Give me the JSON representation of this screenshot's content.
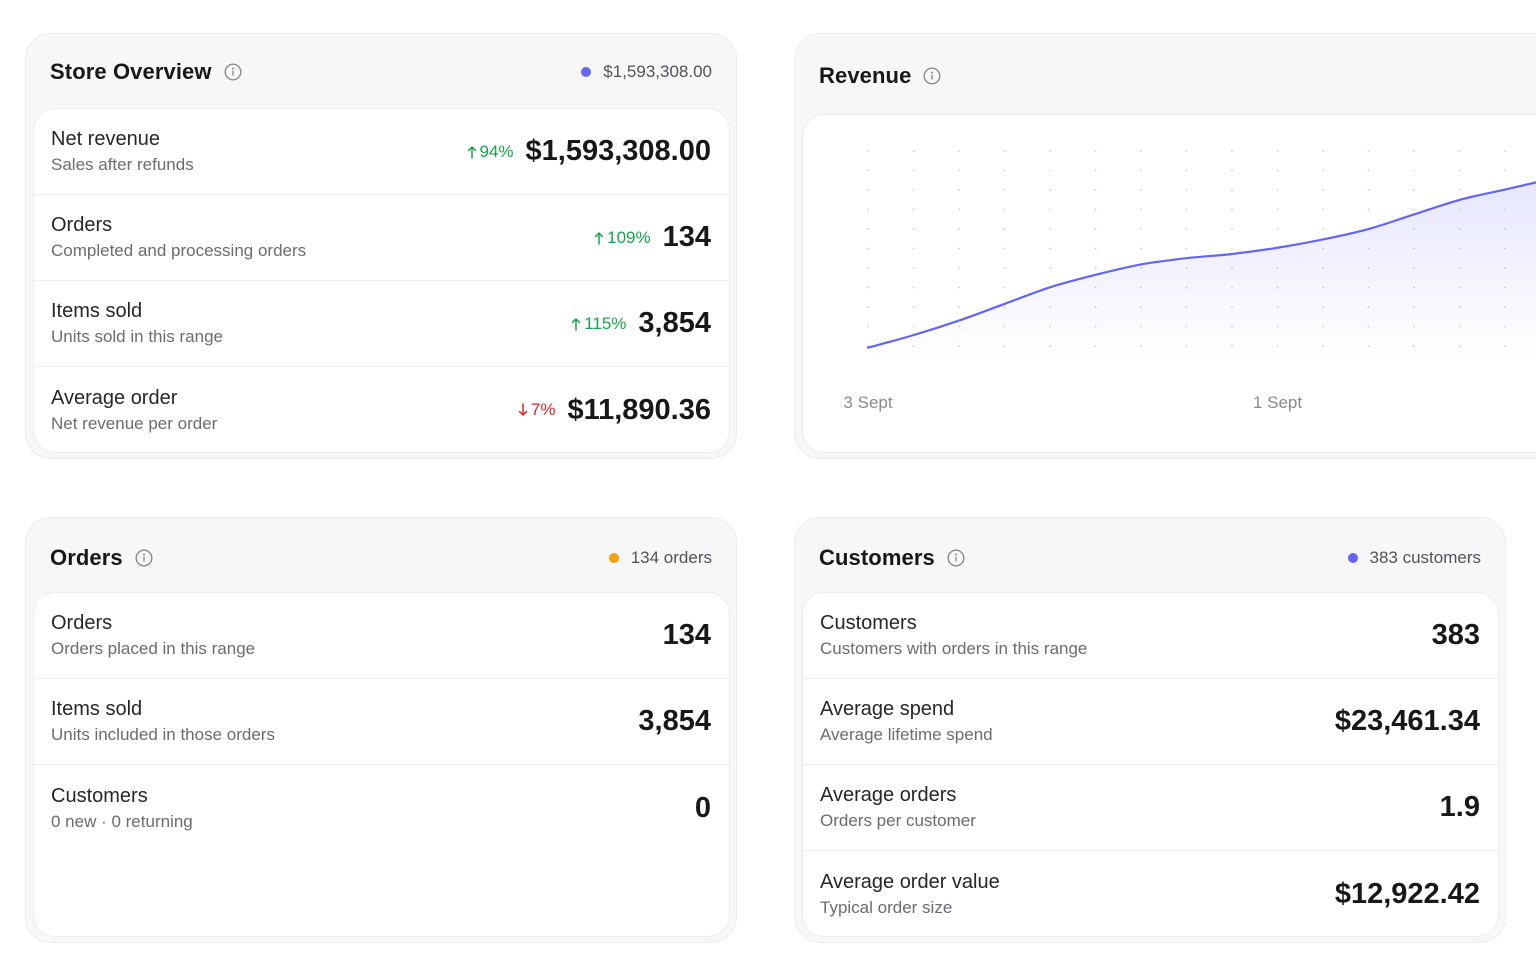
{
  "colors": {
    "accent": "#6366f1",
    "orange": "#f59e0b",
    "up": "#16a34a",
    "down": "#dc2626"
  },
  "store_overview": {
    "title": "Store Overview",
    "summary": "$1,593,308.00",
    "rows": [
      {
        "title": "Net revenue",
        "subtitle": "Sales after refunds",
        "delta": "94%",
        "delta_dir": "up",
        "value": "$1,593,308.00"
      },
      {
        "title": "Orders",
        "subtitle": "Completed and processing orders",
        "delta": "109%",
        "delta_dir": "up",
        "value": "134"
      },
      {
        "title": "Items sold",
        "subtitle": "Units sold in this range",
        "delta": "115%",
        "delta_dir": "up",
        "value": "3,854"
      },
      {
        "title": "Average order",
        "subtitle": "Net revenue per order",
        "delta": "7%",
        "delta_dir": "down",
        "value": "$11,890.36"
      }
    ]
  },
  "revenue": {
    "title": "Revenue"
  },
  "chart_data": {
    "type": "area",
    "title": "Revenue",
    "x": [
      "3 Sept",
      "",
      "",
      "",
      "",
      "",
      "",
      "",
      "",
      "1 Sept",
      "",
      "",
      "",
      "",
      "",
      ""
    ],
    "tick_labels": [
      "3 Sept",
      "1 Sept"
    ],
    "series": [
      {
        "values": [
          0.05,
          0.11,
          0.18,
          0.26,
          0.34,
          0.4,
          0.45,
          0.48,
          0.5,
          0.53,
          0.57,
          0.62,
          0.69,
          0.76,
          0.81,
          0.86
        ]
      }
    ],
    "grid": "dotted",
    "legend": "none"
  },
  "orders": {
    "title": "Orders",
    "summary": "134 orders",
    "rows": [
      {
        "title": "Orders",
        "subtitle": "Orders placed in this range",
        "value": "134"
      },
      {
        "title": "Items sold",
        "subtitle": "Units included in those orders",
        "value": "3,854"
      },
      {
        "title": "Customers",
        "subtitle": "0 new · 0 returning",
        "value": "0"
      }
    ]
  },
  "customers": {
    "title": "Customers",
    "summary": "383 customers",
    "rows": [
      {
        "title": "Customers",
        "subtitle": "Customers with orders in this range",
        "value": "383"
      },
      {
        "title": "Average spend",
        "subtitle": "Average lifetime spend",
        "value": "$23,461.34"
      },
      {
        "title": "Average orders",
        "subtitle": "Orders per customer",
        "value": "1.9"
      },
      {
        "title": "Average order value",
        "subtitle": "Typical order size",
        "value": "$12,922.42"
      }
    ]
  }
}
